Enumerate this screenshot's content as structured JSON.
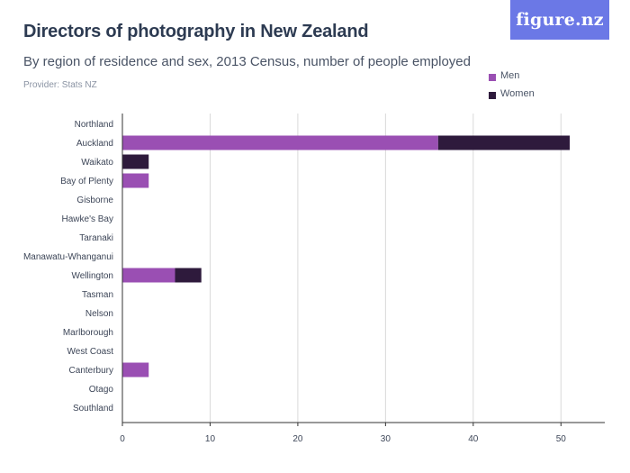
{
  "header": {
    "title": "Directors of photography in New Zealand",
    "subtitle": "By region of residence and sex, 2013 Census, number of people employed",
    "provider": "Provider: Stats NZ",
    "logo_text": "figure.nz"
  },
  "colors": {
    "men": "#9a4fb3",
    "women": "#2e1a3c",
    "logo_bg": "#6b78e6",
    "grid": "#d9d9d9",
    "axis": "#333333"
  },
  "chart_data": {
    "type": "bar",
    "orientation": "horizontal",
    "stacked": true,
    "categories": [
      "Northland",
      "Auckland",
      "Waikato",
      "Bay of Plenty",
      "Gisborne",
      "Hawke's Bay",
      "Taranaki",
      "Manawatu-Whanganui",
      "Wellington",
      "Tasman",
      "Nelson",
      "Marlborough",
      "West Coast",
      "Canterbury",
      "Otago",
      "Southland"
    ],
    "series": [
      {
        "name": "Men",
        "values": [
          0,
          36,
          0,
          3,
          0,
          0,
          0,
          0,
          6,
          0,
          0,
          0,
          0,
          3,
          0,
          0
        ]
      },
      {
        "name": "Women",
        "values": [
          0,
          15,
          3,
          0,
          0,
          0,
          0,
          0,
          3,
          0,
          0,
          0,
          0,
          0,
          0,
          0
        ]
      }
    ],
    "xlim": [
      0,
      55
    ],
    "xticks": [
      0,
      10,
      20,
      30,
      40,
      50
    ],
    "grid": true,
    "legend": "top-right"
  }
}
